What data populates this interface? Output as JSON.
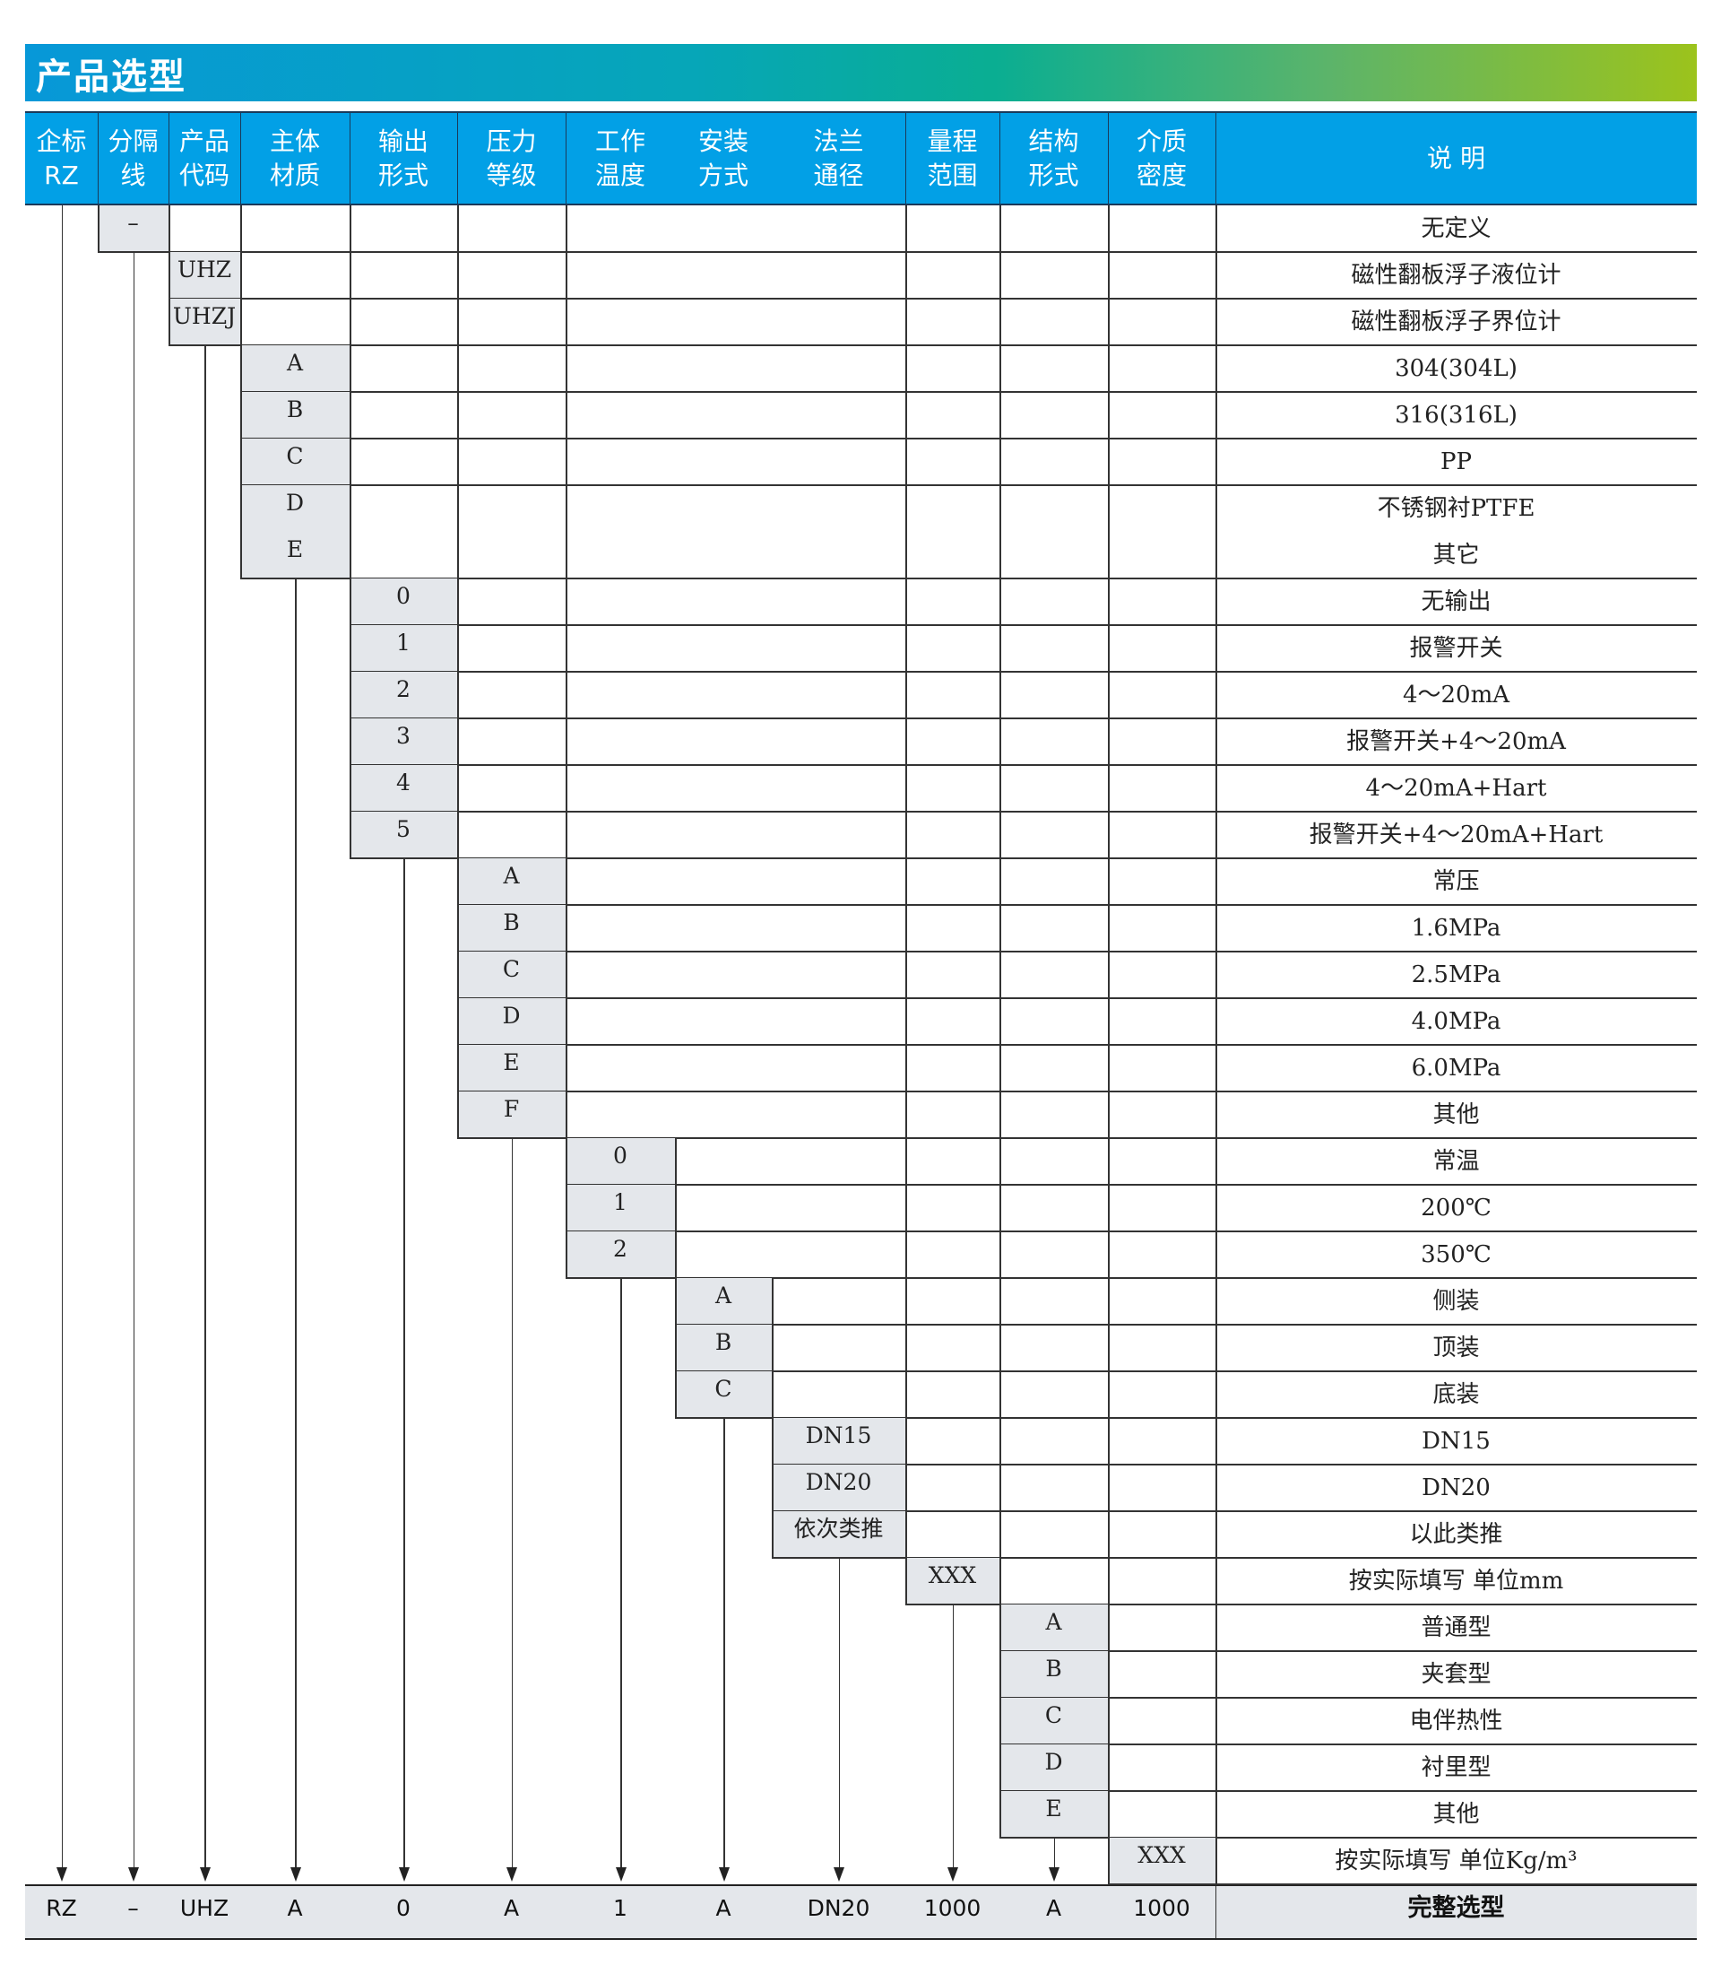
{
  "title": "产品选型",
  "colors": {
    "header_bg": "#02a0e6",
    "code_cell_bg": "#e4e7eb",
    "banner_start": "#0798d8",
    "banner_end": "#9cc31c"
  },
  "headers": [
    "企标\nRZ",
    "分隔\n线",
    "产品\n代码",
    "主体\n材质",
    "输出\n形式",
    "压力\n等级",
    "工作\n温度",
    "安装\n方式",
    "法兰\n通径",
    "量程\n范围",
    "结构\n形式",
    "介质\n密度",
    "说 明"
  ],
  "rows": [
    {
      "col": 1,
      "code": "–",
      "desc": "无定义"
    },
    {
      "col": 2,
      "code": "UHZ",
      "desc": "磁性翻板浮子液位计"
    },
    {
      "col": 2,
      "code": "UHZJ",
      "desc": "磁性翻板浮子界位计"
    },
    {
      "col": 3,
      "code": "A",
      "desc": "304(304L)"
    },
    {
      "col": 3,
      "code": "B",
      "desc": "316(316L)"
    },
    {
      "col": 3,
      "code": "C",
      "desc": "PP"
    },
    {
      "col": 3,
      "code": "D",
      "desc": "不锈钢衬PTFE",
      "merge_next": true
    },
    {
      "col": 3,
      "code": "E",
      "desc": "其它"
    },
    {
      "col": 4,
      "code": "0",
      "desc": "无输出"
    },
    {
      "col": 4,
      "code": "1",
      "desc": "报警开关"
    },
    {
      "col": 4,
      "code": "2",
      "desc": "4～20mA"
    },
    {
      "col": 4,
      "code": "3",
      "desc": "报警开关+4～20mA"
    },
    {
      "col": 4,
      "code": "4",
      "desc": "4～20mA+Hart"
    },
    {
      "col": 4,
      "code": "5",
      "desc": "报警开关+4～20mA+Hart"
    },
    {
      "col": 5,
      "code": "A",
      "desc": "常压"
    },
    {
      "col": 5,
      "code": "B",
      "desc": "1.6MPa"
    },
    {
      "col": 5,
      "code": "C",
      "desc": "2.5MPa"
    },
    {
      "col": 5,
      "code": "D",
      "desc": "4.0MPa"
    },
    {
      "col": 5,
      "code": "E",
      "desc": "6.0MPa"
    },
    {
      "col": 5,
      "code": "F",
      "desc": "其他"
    },
    {
      "col": 6,
      "code": "0",
      "desc": "常温"
    },
    {
      "col": 6,
      "code": "1",
      "desc": "200℃"
    },
    {
      "col": 6,
      "code": "2",
      "desc": "350℃"
    },
    {
      "col": 7,
      "code": "A",
      "desc": "侧装"
    },
    {
      "col": 7,
      "code": "B",
      "desc": "顶装"
    },
    {
      "col": 7,
      "code": "C",
      "desc": "底装"
    },
    {
      "col": 8,
      "code": "DN15",
      "desc": "DN15"
    },
    {
      "col": 8,
      "code": "DN20",
      "desc": "DN20"
    },
    {
      "col": 8,
      "code": "依次类推",
      "desc": "以此类推"
    },
    {
      "col": 9,
      "code": "XXX",
      "desc": "按实际填写  单位mm"
    },
    {
      "col": 10,
      "code": "A",
      "desc": "普通型"
    },
    {
      "col": 10,
      "code": "B",
      "desc": "夹套型"
    },
    {
      "col": 10,
      "code": "C",
      "desc": "电伴热性"
    },
    {
      "col": 10,
      "code": "D",
      "desc": "衬里型"
    },
    {
      "col": 10,
      "code": "E",
      "desc": "其他"
    },
    {
      "col": 11,
      "code": "XXX",
      "desc": "按实际填写  单位Kg/m³"
    }
  ],
  "footer": {
    "values": [
      "RZ",
      "–",
      "UHZ",
      "A",
      "0",
      "A",
      "1",
      "A",
      "DN20",
      "1000",
      "A",
      "1000"
    ],
    "desc": "完整选型"
  }
}
